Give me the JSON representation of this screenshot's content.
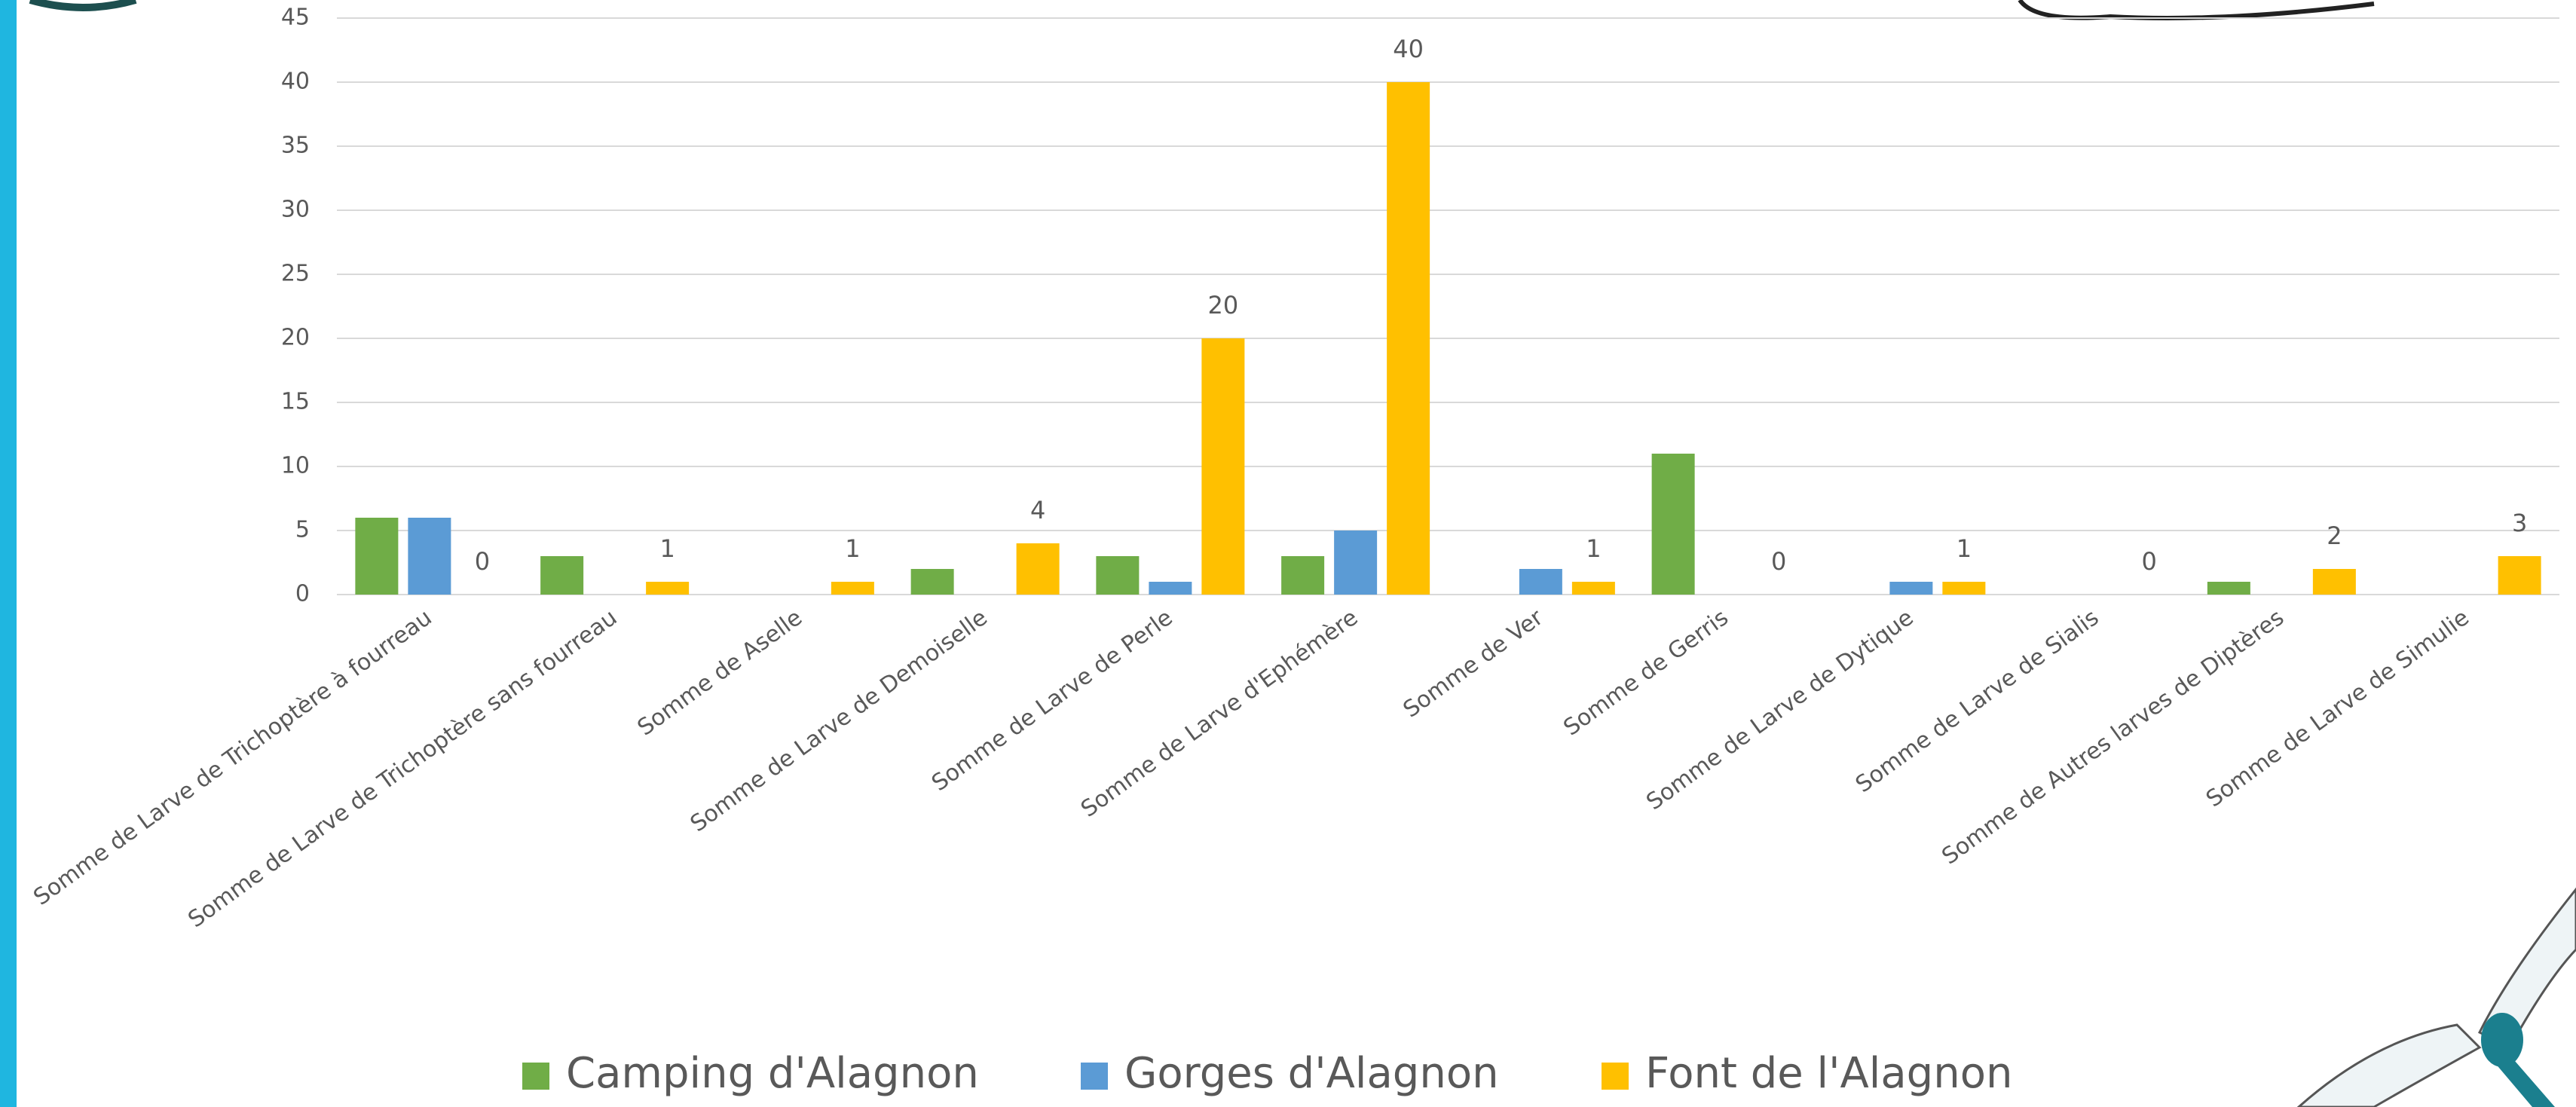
{
  "chart_data": {
    "type": "bar",
    "categories": [
      "Somme de Larve de Trichoptère à fourreau",
      "Somme de Larve de Trichoptère sans fourreau",
      "Somme de Aselle",
      "Somme de Larve de Demoiselle",
      "Somme de Larve de Perle",
      "Somme de Larve d'Ephémère",
      "Somme de Ver",
      "Somme de Gerris",
      "Somme de Larve de Dytique",
      "Somme de Larve de Sialis",
      "Somme de Autres larves de Diptères",
      "Somme de Larve de Simulie"
    ],
    "series": [
      {
        "name": "Camping d'Alagnon",
        "color": "#70ad47",
        "values": [
          6,
          3,
          0,
          2,
          3,
          3,
          0,
          11,
          0,
          0,
          1,
          0
        ]
      },
      {
        "name": "Gorges d'Alagnon",
        "color": "#5b9bd5",
        "values": [
          6,
          0,
          0,
          0,
          1,
          5,
          2,
          0,
          1,
          0,
          0,
          0
        ]
      },
      {
        "name": "Font de l'Alagnon",
        "color": "#ffc000",
        "values": [
          0,
          1,
          1,
          4,
          20,
          40,
          1,
          0,
          1,
          0,
          2,
          3
        ],
        "data_labels": true
      }
    ],
    "ylim": [
      0,
      45
    ],
    "yticks": [
      0,
      5,
      10,
      15,
      20,
      25,
      30,
      35,
      40,
      45
    ],
    "grid": true,
    "legend": "bottom"
  }
}
